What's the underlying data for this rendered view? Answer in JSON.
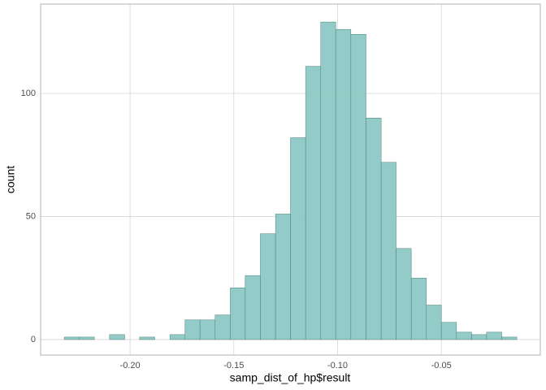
{
  "chart_data": {
    "type": "histogram",
    "x_label": "samp_dist_of_hp$result",
    "y_label": "count",
    "bins": [
      -0.2317,
      -0.2244,
      -0.2172,
      -0.2099,
      -0.2026,
      -0.1954,
      -0.1881,
      -0.1808,
      -0.1735,
      -0.1663,
      -0.159,
      -0.1517,
      -0.1445,
      -0.1372,
      -0.1299,
      -0.1227,
      -0.1154,
      -0.1081,
      -0.1009,
      -0.0936,
      -0.0863,
      -0.079,
      -0.0718,
      -0.0645,
      -0.0572,
      -0.05,
      -0.0427,
      -0.0354,
      -0.0282,
      -0.0209,
      -0.0136
    ],
    "values": [
      1,
      1,
      0,
      2,
      0,
      1,
      0,
      2,
      8,
      8,
      10,
      21,
      26,
      43,
      51,
      82,
      111,
      129,
      126,
      124,
      90,
      72,
      37,
      25,
      14,
      7,
      3,
      2,
      3,
      1
    ],
    "color": "#8cc8c4",
    "edge_color": "#4f7f7d",
    "xlim": [
      -0.2431,
      -0.0023
    ],
    "ylim": [
      -6.3,
      136.3
    ],
    "xticks": [
      {
        "value": -0.2,
        "label": "-0.20"
      },
      -0.15,
      {
        "value": -0.1,
        "label": "-0.10"
      },
      -0.05
    ],
    "yticks": [
      0,
      50,
      100
    ],
    "grid": true
  }
}
